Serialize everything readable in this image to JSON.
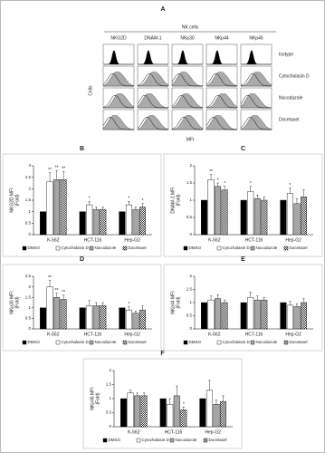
{
  "figure_a": {
    "label": "A",
    "title": "NK cells",
    "columns": [
      "NKG2D",
      "DNAM-1",
      "NKp30",
      "NKp44",
      "NKp46"
    ],
    "rows": [
      "Isotype",
      "Cytochalasin D",
      "Nocodazole",
      "Docetaxel"
    ],
    "y_label": "Cells",
    "x_label": "MFI"
  },
  "chart_data": [
    {
      "type": "bar",
      "panel": "B",
      "ylabel": "NKG2D MFI",
      "ylabel_unit": "(Fold)",
      "categories": [
        "K-562",
        "HCT-116",
        "Hep-G2"
      ],
      "ylim": [
        0,
        3
      ],
      "yticks": [
        0,
        0.5,
        1,
        1.5,
        2,
        2.5,
        3
      ],
      "series": [
        {
          "name": "DMSO",
          "color": "#000000",
          "values": [
            1,
            1,
            1
          ],
          "errors": [
            0,
            0,
            0
          ]
        },
        {
          "name": "Cytochalasin D",
          "color": "#ffffff",
          "values": [
            2.3,
            1.3,
            1.3
          ],
          "errors": [
            0.4,
            0.15,
            0.15
          ],
          "significance": [
            "**",
            "*",
            "*"
          ]
        },
        {
          "name": "Nocodazole",
          "color": "#a6a6a6",
          "values": [
            2.4,
            1.1,
            1.1
          ],
          "errors": [
            0.4,
            0.1,
            0.1
          ],
          "significance": [
            "**",
            null,
            null
          ]
        },
        {
          "name": "Docetaxel",
          "color": "#ffffff",
          "hatch": true,
          "values": [
            2.4,
            1.1,
            1.2
          ],
          "errors": [
            0.35,
            0.1,
            0.15
          ],
          "significance": [
            "**",
            null,
            "*"
          ]
        }
      ]
    },
    {
      "type": "bar",
      "panel": "C",
      "ylabel": "DNAM-1 MFI",
      "ylabel_unit": "(Fold)",
      "categories": [
        "K-562",
        "HCT-116",
        "Hep-G2"
      ],
      "ylim": [
        0,
        2
      ],
      "yticks": [
        0,
        0.5,
        1,
        1.5,
        2
      ],
      "series": [
        {
          "name": "DMSO",
          "color": "#000000",
          "values": [
            1,
            1,
            1
          ],
          "errors": [
            0,
            0,
            0
          ]
        },
        {
          "name": "Cytochalasin D",
          "color": "#ffffff",
          "values": [
            1.6,
            1.25,
            1.2
          ],
          "errors": [
            0.15,
            0.15,
            0.15
          ],
          "significance": [
            "**",
            "*",
            "*"
          ]
        },
        {
          "name": "Nocodazole",
          "color": "#a6a6a6",
          "values": [
            1.4,
            1.05,
            0.9
          ],
          "errors": [
            0.1,
            0.1,
            0.15
          ],
          "significance": [
            "*",
            null,
            null
          ]
        },
        {
          "name": "Docetaxel",
          "color": "#ffffff",
          "hatch": true,
          "values": [
            1.3,
            1,
            1.1
          ],
          "errors": [
            0.1,
            0.1,
            0.2
          ],
          "significance": [
            "*",
            null,
            null
          ]
        }
      ]
    },
    {
      "type": "bar",
      "panel": "D",
      "ylabel": "NKp30 MFI",
      "ylabel_unit": "(Fold)",
      "categories": [
        "K-562",
        "HCT-116",
        "Hep-G2"
      ],
      "ylim": [
        0,
        2.5
      ],
      "yticks": [
        0,
        0.5,
        1,
        1.5,
        2,
        2.5
      ],
      "series": [
        {
          "name": "DMSO",
          "color": "#000000",
          "values": [
            1,
            1,
            1
          ],
          "errors": [
            0,
            0,
            0
          ]
        },
        {
          "name": "Cytochalasin D",
          "color": "#ffffff",
          "values": [
            2,
            1.1,
            0.9
          ],
          "errors": [
            0.3,
            0.25,
            0.15
          ],
          "significance": [
            "**",
            null,
            "*"
          ]
        },
        {
          "name": "Nocodazole",
          "color": "#a6a6a6",
          "values": [
            1.5,
            1.1,
            0.75
          ],
          "errors": [
            0.2,
            0.15,
            0.1
          ],
          "significance": [
            "**",
            null,
            null
          ]
        },
        {
          "name": "Docetaxel",
          "color": "#ffffff",
          "hatch": true,
          "values": [
            1.4,
            1.1,
            0.9
          ],
          "errors": [
            0.2,
            0.15,
            0.2
          ],
          "significance": [
            "**",
            null,
            null
          ]
        }
      ]
    },
    {
      "type": "bar",
      "panel": "E",
      "ylabel": "NKp44 MFI",
      "ylabel_unit": "(Fold)",
      "categories": [
        "K-562",
        "HCT-116",
        "Hep-G2"
      ],
      "ylim": [
        0,
        2
      ],
      "yticks": [
        0,
        0.5,
        1,
        1.5,
        2
      ],
      "series": [
        {
          "name": "DMSO",
          "color": "#000000",
          "values": [
            1,
            1,
            1
          ],
          "errors": [
            0,
            0,
            0
          ]
        },
        {
          "name": "Cytochalasin D",
          "color": "#ffffff",
          "values": [
            1.1,
            1.2,
            0.9
          ],
          "errors": [
            0.15,
            0.2,
            0.15
          ]
        },
        {
          "name": "Nocodazole",
          "color": "#a6a6a6",
          "values": [
            1.15,
            1.1,
            0.85
          ],
          "errors": [
            0.15,
            0.15,
            0.1
          ]
        },
        {
          "name": "Docetaxel",
          "color": "#ffffff",
          "hatch": true,
          "values": [
            1,
            1.1,
            1
          ],
          "errors": [
            0.1,
            0.1,
            0.15
          ]
        }
      ]
    },
    {
      "type": "bar",
      "panel": "F",
      "ylabel": "NKp46 MFI",
      "ylabel_unit": "(Fold)",
      "categories": [
        "K-562",
        "HCT-116",
        "Hep-G2"
      ],
      "ylim": [
        0,
        2
      ],
      "yticks": [
        0,
        0.5,
        1,
        1.5,
        2
      ],
      "series": [
        {
          "name": "DMSO",
          "color": "#000000",
          "values": [
            1,
            1,
            1
          ],
          "errors": [
            0,
            0,
            0
          ]
        },
        {
          "name": "Cytochalasin D",
          "color": "#ffffff",
          "values": [
            1.2,
            0.8,
            1.3
          ],
          "errors": [
            0.1,
            0.2,
            0.35
          ]
        },
        {
          "name": "Nocodazole",
          "color": "#a6a6a6",
          "values": [
            1.1,
            1.1,
            0.8
          ],
          "errors": [
            0.1,
            0.35,
            0.15
          ]
        },
        {
          "name": "Docetaxel",
          "color": "#ffffff",
          "hatch": true,
          "values": [
            1.1,
            0.6,
            0.9
          ],
          "errors": [
            0.1,
            0.1,
            0.2
          ],
          "significance": [
            null,
            "*",
            null
          ]
        }
      ]
    }
  ]
}
